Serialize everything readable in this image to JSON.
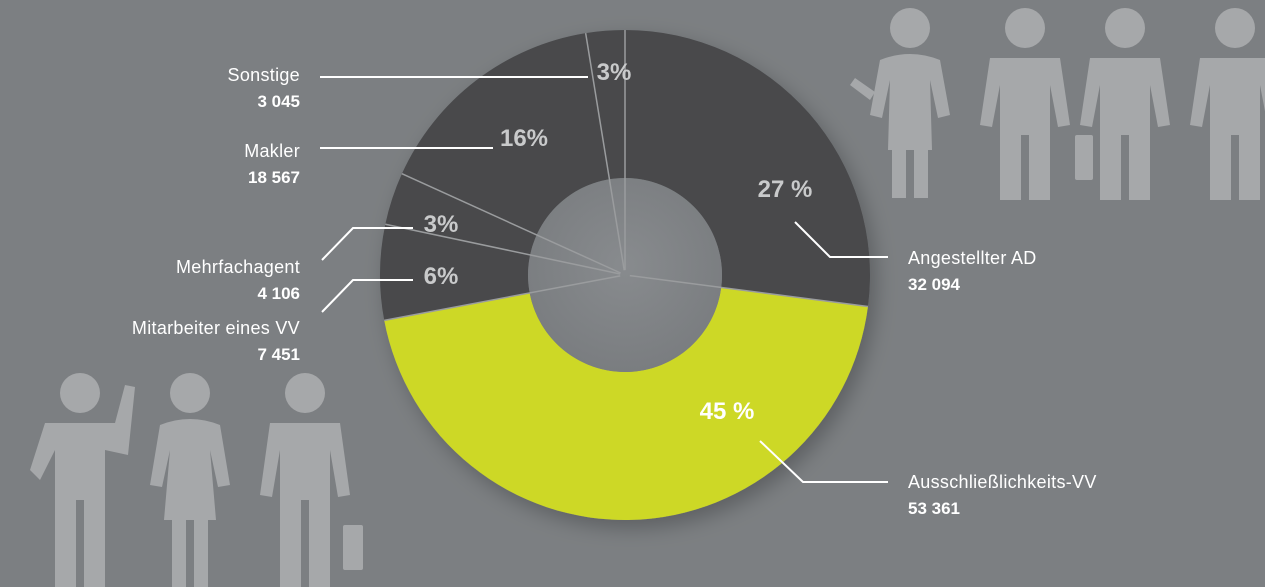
{
  "chart_data": {
    "type": "pie",
    "variant": "donut",
    "slices": [
      {
        "label": "Angestellter AD",
        "value": 32094,
        "percent_label": "27 %",
        "color": "#48494b"
      },
      {
        "label": "Ausschließlichkeits-VV",
        "value": 53361,
        "percent_label": "45 %",
        "color": "#cdd827"
      },
      {
        "label": "Mitarbeiter eines VV",
        "value": 7451,
        "percent_label": "6%",
        "color": "#48494b"
      },
      {
        "label": "Mehrfachagent",
        "value": 4106,
        "percent_label": "3%",
        "color": "#48494b"
      },
      {
        "label": "Makler",
        "value": 18567,
        "percent_label": "16%",
        "color": "#48494b"
      },
      {
        "label": "Sonstige",
        "value": 3045,
        "percent_label": "3%",
        "color": "#48494b"
      }
    ],
    "value_labels": {
      "Angestellter AD": "32 094",
      "Ausschließlichkeits-VV": "53 361",
      "Mitarbeiter eines VV": "7 451",
      "Mehrfachagent": "4 106",
      "Makler": "18 567",
      "Sonstige": "3 045"
    }
  },
  "colors": {
    "background": "#7c7f82",
    "dark_slice": "#48494b",
    "accent_slice": "#cdd827",
    "hole": "#7c7f82",
    "percent_text_on_dark": "#c9cacb",
    "percent_text_on_accent": "#ffffff",
    "figure_silhouettes": "#a6a8aa"
  },
  "decorations": {
    "icons": [
      "people-silhouettes-top-right",
      "people-silhouettes-bottom-left"
    ]
  }
}
